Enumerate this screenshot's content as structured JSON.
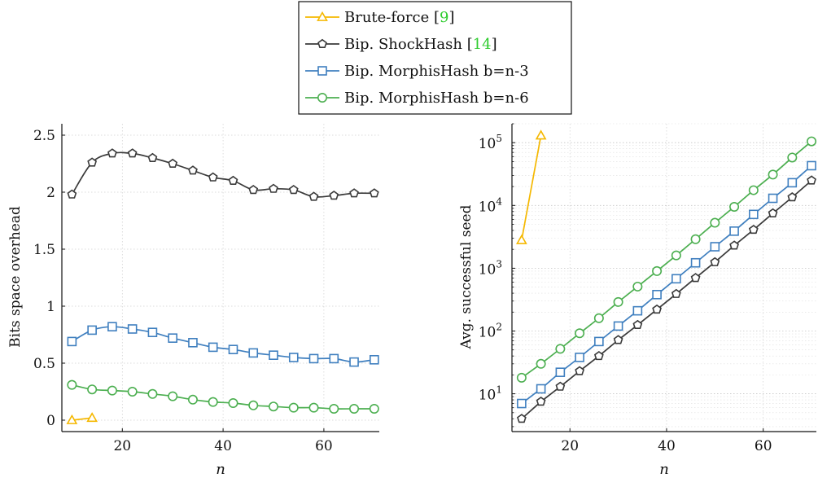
{
  "legend": {
    "entries": [
      {
        "label": "Brute-force",
        "ref": "9",
        "color": "#f5b800",
        "marker": "triangle"
      },
      {
        "label": "Bip. ShockHash",
        "ref": "14",
        "color": "#3a3a3a",
        "marker": "pentagon"
      },
      {
        "label": "Bip. MorphisHash b=n-3",
        "ref": "",
        "color": "#3f7fbf",
        "marker": "square"
      },
      {
        "label": "Bip. MorphisHash b=n-6",
        "ref": "",
        "color": "#4caf50",
        "marker": "circle"
      }
    ]
  },
  "chart_data": [
    {
      "type": "line",
      "xlabel": "n",
      "ylabel": "Bits space overhead",
      "xlim": [
        8,
        71
      ],
      "ylim": [
        -0.1,
        2.6
      ],
      "xticks": [
        20,
        40,
        60
      ],
      "yticks": [
        0,
        0.5,
        1,
        1.5,
        2,
        2.5
      ],
      "ytick_labels": [
        "0",
        "0.5",
        "1",
        "1.5",
        "2",
        "2.5"
      ],
      "grid": true,
      "series": [
        {
          "name": "Brute-force",
          "x": [
            10,
            14
          ],
          "y": [
            0.0,
            0.02
          ]
        },
        {
          "name": "Bip. ShockHash",
          "x": [
            10,
            14,
            18,
            22,
            26,
            30,
            34,
            38,
            42,
            46,
            50,
            54,
            58,
            62,
            66,
            70
          ],
          "y": [
            1.98,
            2.26,
            2.34,
            2.34,
            2.3,
            2.25,
            2.19,
            2.13,
            2.1,
            2.02,
            2.03,
            2.02,
            1.96,
            1.97,
            1.99,
            1.99
          ]
        },
        {
          "name": "Bip. MorphisHash b=n-3",
          "x": [
            10,
            14,
            18,
            22,
            26,
            30,
            34,
            38,
            42,
            46,
            50,
            54,
            58,
            62,
            66,
            70
          ],
          "y": [
            0.69,
            0.79,
            0.82,
            0.8,
            0.77,
            0.72,
            0.68,
            0.64,
            0.62,
            0.59,
            0.57,
            0.55,
            0.54,
            0.54,
            0.51,
            0.53
          ]
        },
        {
          "name": "Bip. MorphisHash b=n-6",
          "x": [
            10,
            14,
            18,
            22,
            26,
            30,
            34,
            38,
            42,
            46,
            50,
            54,
            58,
            62,
            66,
            70
          ],
          "y": [
            0.31,
            0.27,
            0.26,
            0.25,
            0.23,
            0.21,
            0.18,
            0.16,
            0.15,
            0.13,
            0.12,
            0.11,
            0.11,
            0.1,
            0.1,
            0.1
          ]
        }
      ]
    },
    {
      "type": "line",
      "scale": "log",
      "xlabel": "n",
      "ylabel": "Avg. successful seed",
      "xlim": [
        8,
        71
      ],
      "ylim": [
        2.5,
        200000
      ],
      "xticks": [
        20,
        40,
        60
      ],
      "yticks": [
        10,
        100,
        1000,
        10000,
        100000
      ],
      "ytick_labels": [
        [
          "10",
          "1"
        ],
        [
          "10",
          "2"
        ],
        [
          "10",
          "3"
        ],
        [
          "10",
          "4"
        ],
        [
          "10",
          "5"
        ]
      ],
      "grid": true,
      "series": [
        {
          "name": "Brute-force",
          "x": [
            10,
            14
          ],
          "y": [
            2800,
            130000
          ]
        },
        {
          "name": "Bip. ShockHash",
          "x": [
            10,
            14,
            18,
            22,
            26,
            30,
            34,
            38,
            42,
            46,
            50,
            54,
            58,
            62,
            66,
            70
          ],
          "y": [
            4,
            7.5,
            13,
            23,
            40,
            72,
            125,
            220,
            390,
            700,
            1250,
            2300,
            4100,
            7500,
            13500,
            25000
          ]
        },
        {
          "name": "Bip. MorphisHash b=n-3",
          "x": [
            10,
            14,
            18,
            22,
            26,
            30,
            34,
            38,
            42,
            46,
            50,
            54,
            58,
            62,
            66,
            70
          ],
          "y": [
            7,
            12,
            22,
            38,
            68,
            120,
            210,
            380,
            680,
            1220,
            2200,
            3900,
            7200,
            13000,
            23000,
            43000
          ]
        },
        {
          "name": "Bip. MorphisHash b=n-6",
          "x": [
            10,
            14,
            18,
            22,
            26,
            30,
            34,
            38,
            42,
            46,
            50,
            54,
            58,
            62,
            66,
            70
          ],
          "y": [
            18,
            30,
            52,
            92,
            160,
            290,
            510,
            900,
            1600,
            2900,
            5300,
            9500,
            17500,
            31000,
            58000,
            105000
          ]
        }
      ]
    }
  ]
}
